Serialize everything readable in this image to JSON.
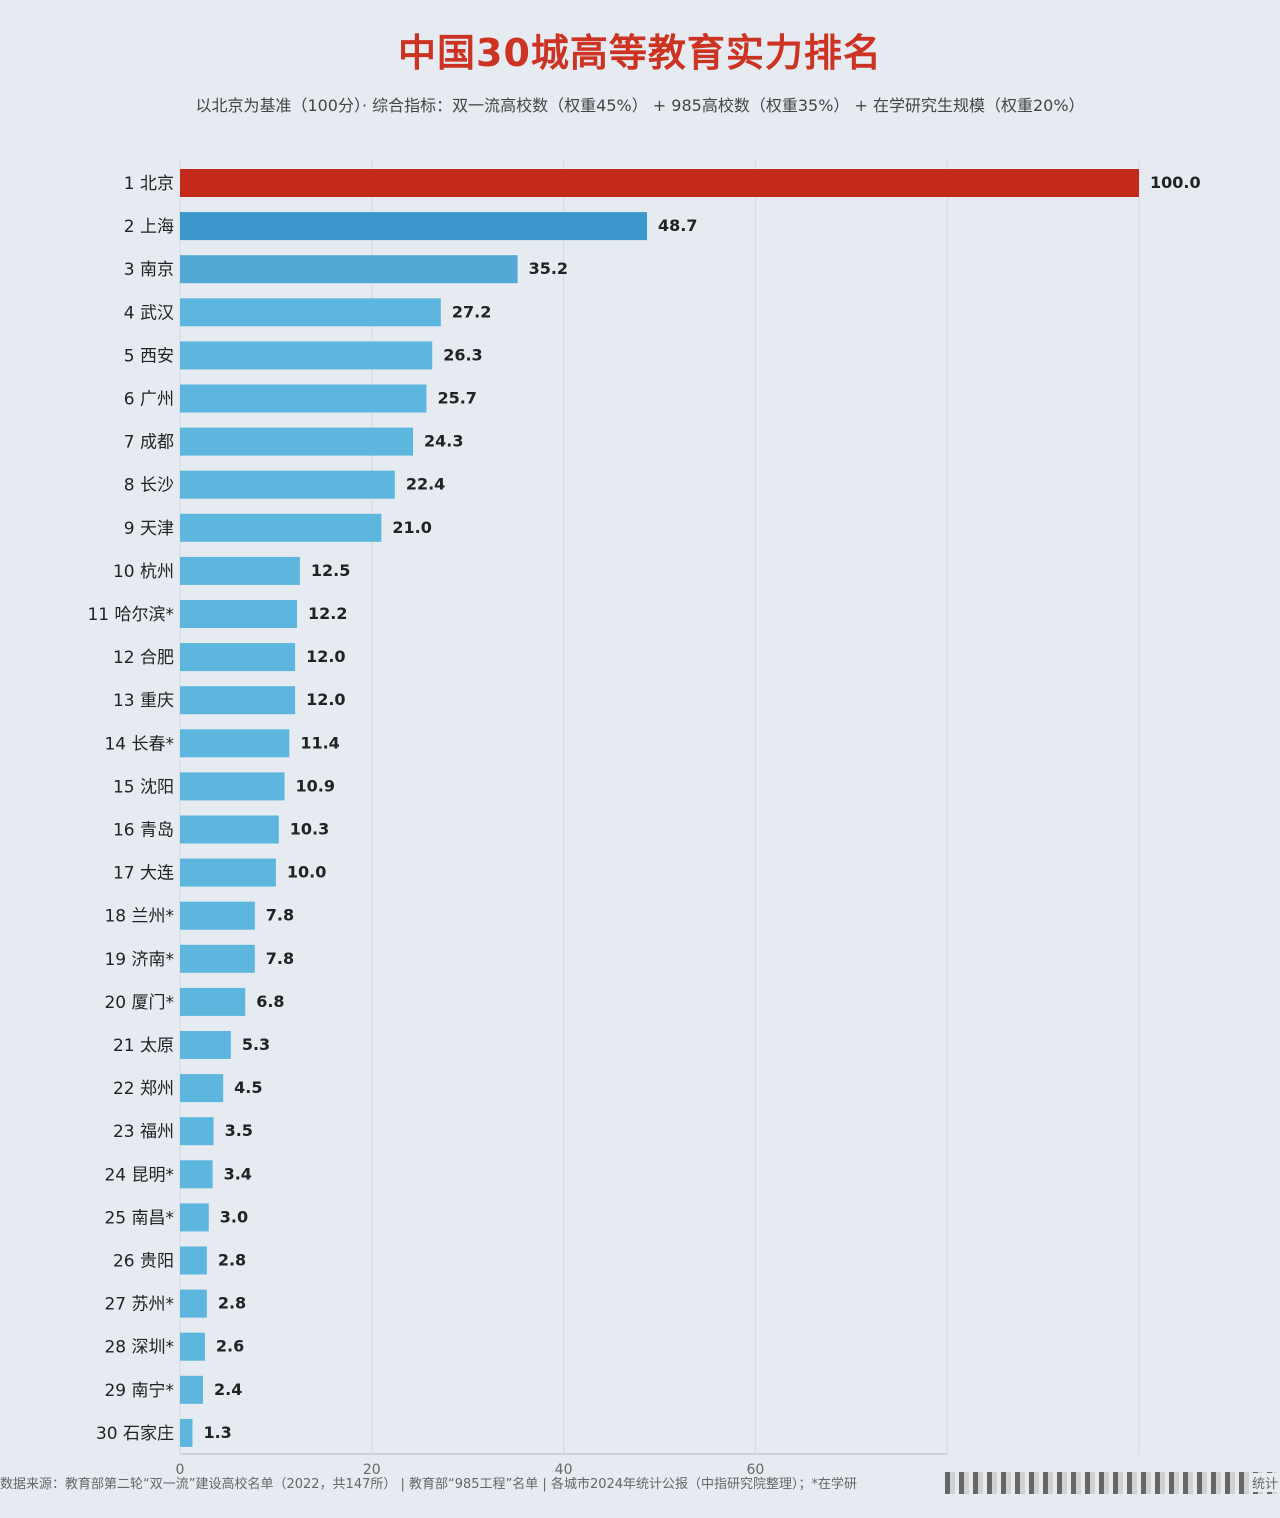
{
  "title": "中国30城高等教育实力排名",
  "subtitle": "以北京为基准（100分）· 综合指标：双一流高校数（权重45%） + 985高校数（权重35%） + 在学研究生规模（权重20%）",
  "footer": {
    "text": "数据来源：教育部第二轮“双一流”建设高校名单（2022，共147所） | 教育部“985工程”名单 | 各城市2024年统计公报（中指研究院整理）；*在学研",
    "end": "统计"
  },
  "colors": {
    "top": "#c42a1c",
    "second": "#3c97cc",
    "third": "#52a9d6",
    "bar": "#5cb6de",
    "title": "#cc3322"
  },
  "chart_data": {
    "type": "bar",
    "orientation": "horizontal",
    "categories": [
      "1 北京",
      "2 上海",
      "3 南京",
      "4 武汉",
      "5 西安",
      "6 广州",
      "7 成都",
      "8 长沙",
      "9 天津",
      "10 杭州",
      "11 哈尔滨*",
      "12 合肥",
      "13 重庆",
      "14 长春*",
      "15 沈阳",
      "16 青岛",
      "17 大连",
      "18 兰州*",
      "19 济南*",
      "20 厦门*",
      "21 太原",
      "22 郑州",
      "23 福州",
      "24 昆明*",
      "25 南昌*",
      "26 贵阳",
      "27 苏州*",
      "28 深圳*",
      "29 南宁*",
      "30 石家庄"
    ],
    "values": [
      100.0,
      48.7,
      35.2,
      27.2,
      26.3,
      25.7,
      24.3,
      22.4,
      21.0,
      12.5,
      12.2,
      12.0,
      12.0,
      11.4,
      10.9,
      10.3,
      10.0,
      7.8,
      7.8,
      6.8,
      5.3,
      4.5,
      3.5,
      3.4,
      3.0,
      2.8,
      2.8,
      2.6,
      2.4,
      1.3
    ],
    "value_labels": [
      "100.0",
      "48.7",
      "35.2",
      "27.2",
      "26.3",
      "25.7",
      "24.3",
      "22.4",
      "21.0",
      "12.5",
      "12.2",
      "12.0",
      "12.0",
      "11.4",
      "10.9",
      "10.3",
      "10.0",
      "7.8",
      "7.8",
      "6.8",
      "5.3",
      "4.5",
      "3.5",
      "3.4",
      "3.0",
      "2.8",
      "2.8",
      "2.6",
      "2.4",
      "1.3"
    ],
    "xticks": [
      "0",
      "20",
      "40",
      "60"
    ],
    "xlim": [
      0,
      100
    ],
    "grid": true
  }
}
